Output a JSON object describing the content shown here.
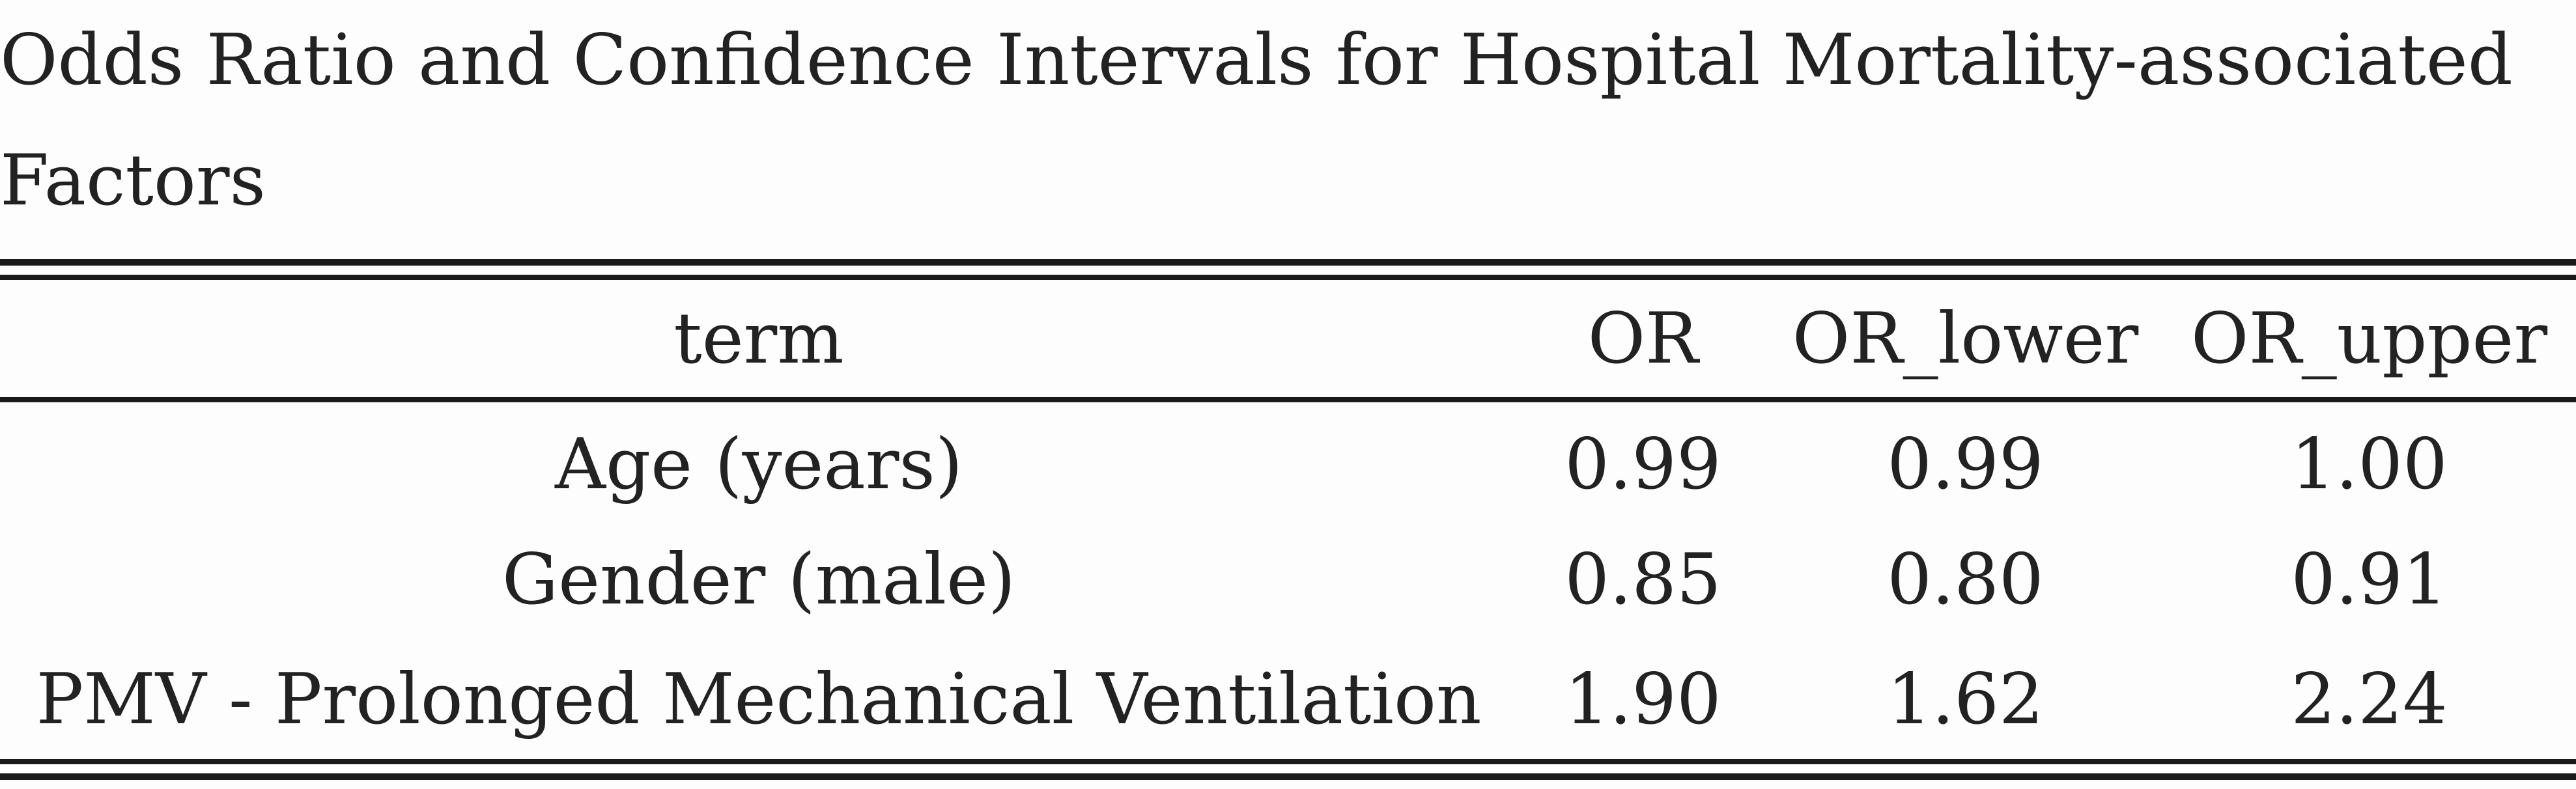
{
  "caption": "Odds Ratio and Confidence Intervals for Hospital Mortality-associated Factors",
  "table": {
    "columns": [
      "term",
      "OR",
      "OR_lower",
      "OR_upper"
    ],
    "rows": [
      [
        "Age (years)",
        "0.99",
        "0.99",
        "1.00"
      ],
      [
        "Gender (male)",
        "0.85",
        "0.80",
        "0.91"
      ],
      [
        "PMV - Prolonged Mechanical Ventilation",
        "1.90",
        "1.62",
        "2.24"
      ]
    ]
  }
}
